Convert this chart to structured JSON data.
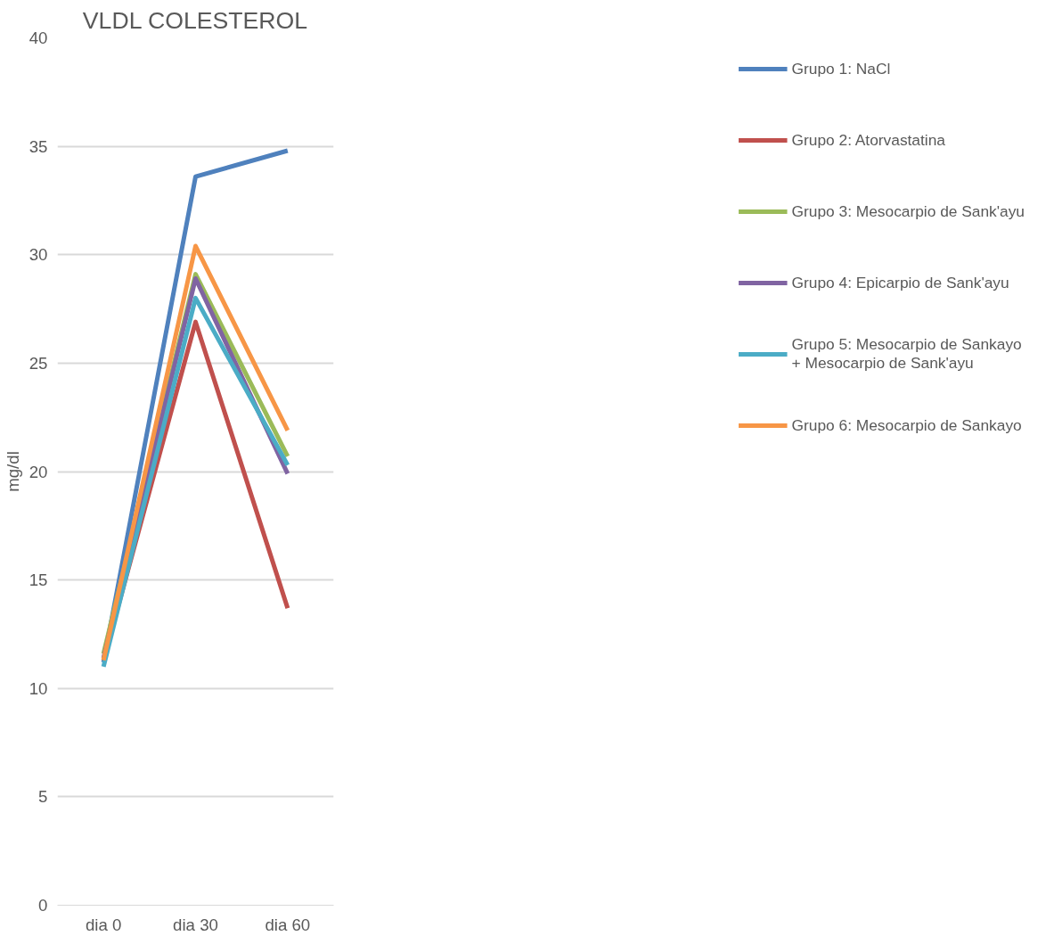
{
  "chart_data": {
    "type": "line",
    "title": "VLDL COLESTEROL",
    "ylabel": "mg/dl",
    "categories": [
      "dia 0",
      "dia 30",
      "dia 60"
    ],
    "series": [
      {
        "name": "Grupo 1: NaCl",
        "color": "#4f81bd",
        "values": [
          11.2,
          33.6,
          34.8
        ]
      },
      {
        "name": "Grupo 2: Atorvastatina",
        "color": "#c0504d",
        "values": [
          11.3,
          26.9,
          13.7
        ]
      },
      {
        "name": "Grupo 3: Mesocarpio de Sank'ayu",
        "color": "#9bbb59",
        "values": [
          11.6,
          29.1,
          20.7
        ]
      },
      {
        "name": "Grupo 4: Epicarpio de Sank'ayu",
        "color": "#8064a2",
        "values": [
          11.4,
          28.9,
          19.9
        ]
      },
      {
        "name": "Grupo 5: Mesocarpio de Sankayo + Mesocarpio de Sank'ayu",
        "color": "#4bacc6",
        "values": [
          11.0,
          28.0,
          20.3
        ]
      },
      {
        "name": "Grupo 6: Mesocarpio de Sankayo",
        "color": "#f79646",
        "values": [
          11.3,
          30.4,
          21.9
        ]
      }
    ],
    "ylim": [
      0,
      40
    ],
    "yticks": [
      0,
      5,
      10,
      15,
      20,
      25,
      30,
      35,
      40
    ],
    "grid": "y",
    "legend": "right",
    "marker": "none",
    "line_style": "solid"
  }
}
